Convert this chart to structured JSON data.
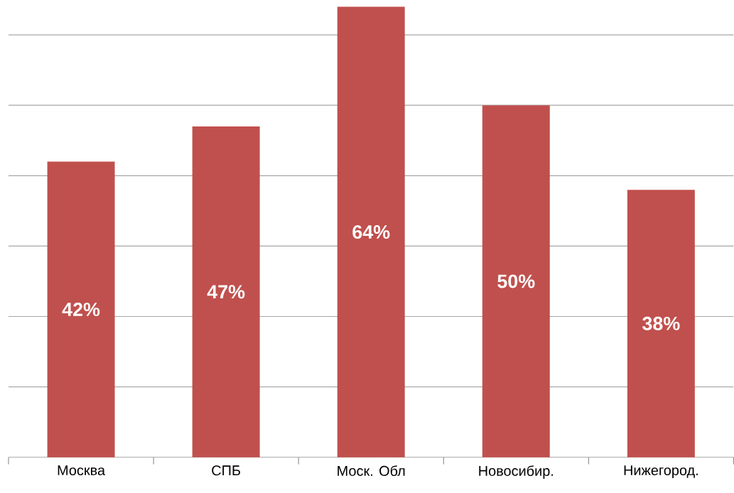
{
  "chart_data": {
    "type": "bar",
    "categories": [
      "Москва",
      "СПБ",
      "Моск. Обл",
      "Новосибир.",
      "Нижегород."
    ],
    "values": [
      42,
      47,
      64,
      50,
      38
    ],
    "value_labels": [
      "42%",
      "47%",
      "64%",
      "50%",
      "38%"
    ],
    "color": "#c0504d",
    "yticks": [
      {
        "value": 10,
        "label": null
      },
      {
        "value": 20,
        "label": null
      },
      {
        "value": 30,
        "label": null
      },
      {
        "value": 40,
        "label": null
      },
      {
        "value": 50,
        "label": null
      },
      {
        "value": 60,
        "label": null
      }
    ],
    "grid": "y",
    "tick_labels": "x"
  }
}
